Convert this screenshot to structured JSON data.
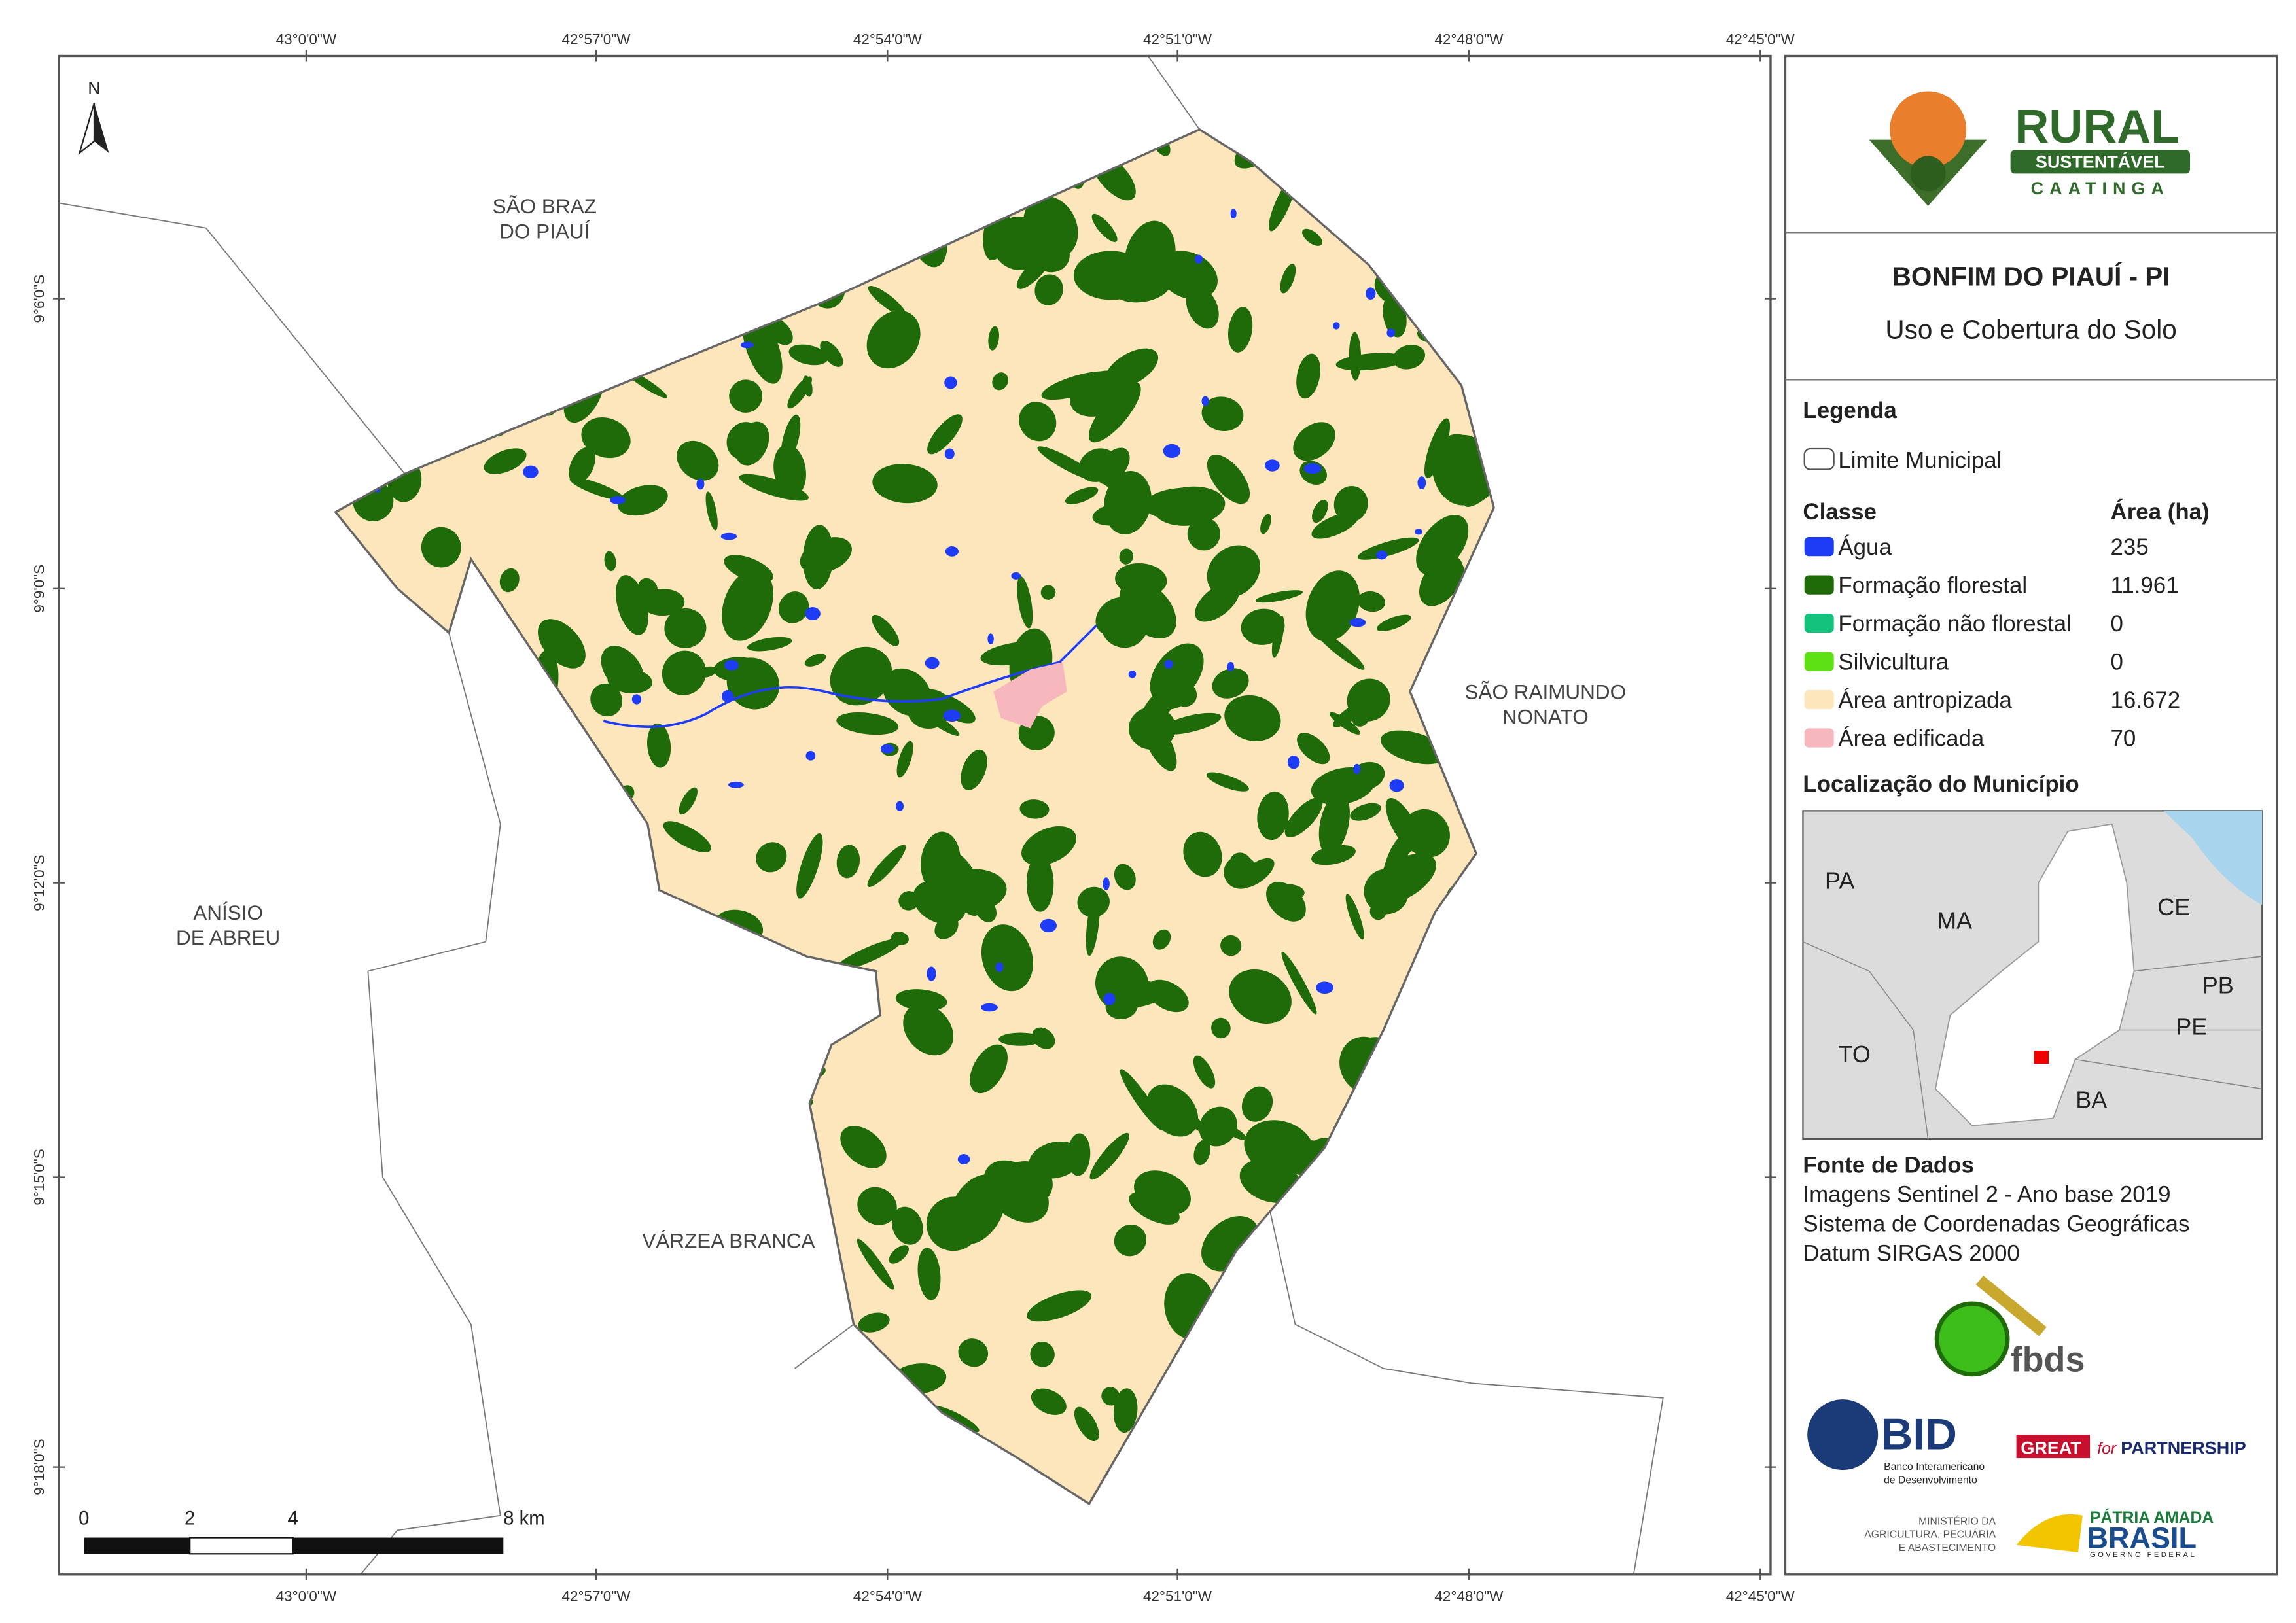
{
  "grid_labels": {
    "top": [
      "43°0'0\"W",
      "42°57'0\"W",
      "42°54'0\"W",
      "42°51'0\"W",
      "42°48'0\"W",
      "42°45'0\"W"
    ],
    "bottom": [
      "43°0'0\"W",
      "42°57'0\"W",
      "42°54'0\"W",
      "42°51'0\"W",
      "42°48'0\"W",
      "42°45'0\"W"
    ],
    "left": [
      "9°6'0\"S",
      "9°9'0\"S",
      "9°12'0\"S",
      "9°15'0\"S",
      "9°18'0\"S"
    ]
  },
  "north_arrow": "N",
  "place_labels": [
    {
      "lines": [
        "SÃO BRAZ",
        "DO PIAUÍ"
      ]
    },
    {
      "lines": [
        "SÃO RAIMUNDO",
        "NONATO"
      ]
    },
    {
      "lines": [
        "ANÍSIO",
        "DE ABREU"
      ]
    },
    {
      "lines": [
        "VÁRZEA BRANCA"
      ]
    }
  ],
  "scale_bar": {
    "labels": [
      "0",
      "2",
      "4",
      "8 km"
    ]
  },
  "logo": {
    "title": "RURAL",
    "subtitle": "SUSTENTÁVEL",
    "tagline": "CAATINGA"
  },
  "header": {
    "title": "BONFIM DO PIAUÍ - PI",
    "subtitle": "Uso e Cobertura do Solo"
  },
  "legend": {
    "title": "Legenda",
    "boundary": "Limite Municipal",
    "class_header": "Classe",
    "area_header": "Área (ha)",
    "rows": [
      {
        "name": "Água",
        "color": "#1e3cf5",
        "area": "235"
      },
      {
        "name": "Formação florestal",
        "color": "#1f6b0a",
        "area": "11.961"
      },
      {
        "name": "Formação não florestal",
        "color": "#15c27d",
        "area": "0"
      },
      {
        "name": "Silvicultura",
        "color": "#5de014",
        "area": "0"
      },
      {
        "name": "Área antropizada",
        "color": "#fde6bb",
        "area": "16.672"
      },
      {
        "name": "Área edificada",
        "color": "#f7b8bd",
        "area": "70"
      }
    ]
  },
  "location": {
    "title": "Localização do Município",
    "labels": [
      "PA",
      "MA",
      "CE",
      "PB",
      "PE",
      "TO",
      "BA"
    ]
  },
  "sources": {
    "title": "Fonte de Dados",
    "lines": [
      "Imagens Sentinel 2 - Ano base 2019",
      "Sistema de Coordenadas Geográficas",
      "Datum SIRGAS 2000"
    ]
  },
  "partners": {
    "fbds": "fbds",
    "bid": "BID",
    "bid_lines": [
      "Banco Interamericano",
      "de Desenvolvimento"
    ],
    "great": "GREAT",
    "great_for": "for",
    "great_partnership": "PARTNERSHIP",
    "ministry_lines": [
      "MINISTÉRIO DA",
      "AGRICULTURA, PECUÁRIA",
      "E ABASTECIMENTO"
    ],
    "patria": "PÁTRIA AMADA",
    "brasil": "BRASIL",
    "governo": "GOVERNO FEDERAL"
  }
}
